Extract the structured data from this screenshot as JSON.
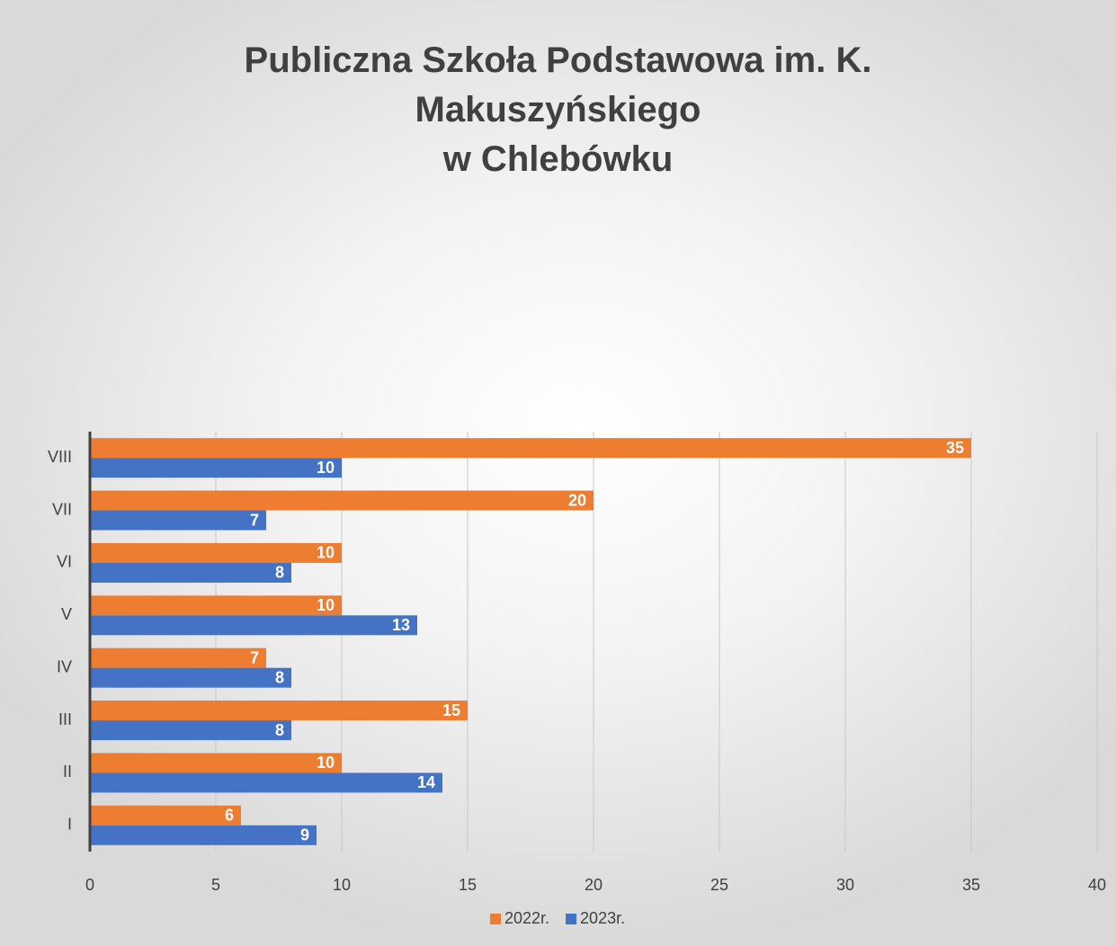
{
  "chart_data": {
    "type": "hbar",
    "title": "Publiczna Szkoła Podstawowa im. K.\nMakuszyńskiego\nw Chlebówku",
    "categories": [
      "I",
      "II",
      "III",
      "IV",
      "V",
      "VI",
      "VII",
      "VIII"
    ],
    "series": [
      {
        "name": "2022r.",
        "color": "#ed7d31",
        "values": [
          6,
          10,
          15,
          7,
          10,
          10,
          20,
          35
        ]
      },
      {
        "name": "2023r.",
        "color": "#4472c4",
        "values": [
          9,
          14,
          8,
          8,
          13,
          8,
          7,
          10
        ]
      }
    ],
    "xlim": [
      0,
      40
    ],
    "xticks": [
      0,
      5,
      10,
      15,
      20,
      25,
      30,
      35,
      40
    ],
    "grid": true,
    "legend": "bottom"
  }
}
